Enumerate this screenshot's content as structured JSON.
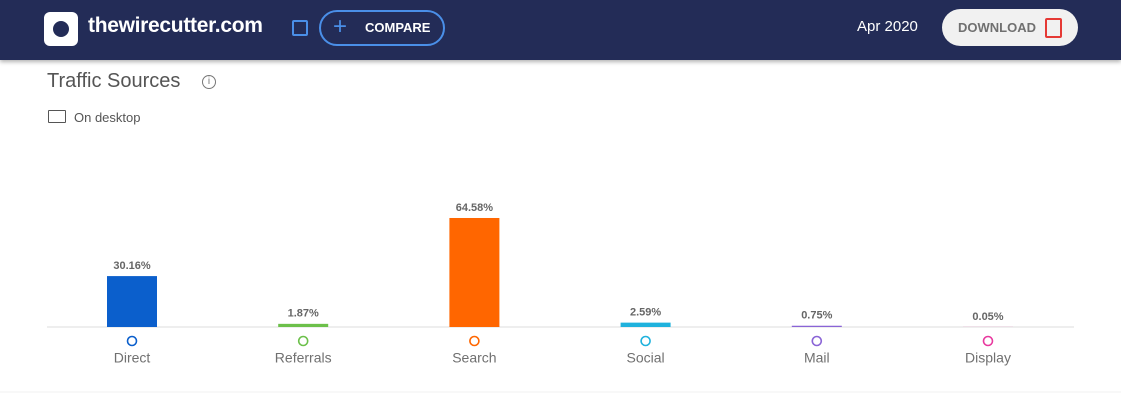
{
  "header": {
    "site": "thewirecutter.com",
    "compare": "COMPARE",
    "date": "Apr 2020",
    "download": "DOWNLOAD"
  },
  "chart_data": {
    "type": "bar",
    "title": "Traffic Sources",
    "subtitle": "On desktop",
    "categories": [
      "Direct",
      "Referrals",
      "Search",
      "Social",
      "Mail",
      "Display"
    ],
    "values": [
      30.16,
      1.87,
      64.58,
      2.59,
      0.75,
      0.05
    ],
    "value_labels": [
      "30.16%",
      "1.87%",
      "64.58%",
      "2.59%",
      "0.75%",
      "0.05%"
    ],
    "colors": [
      "#0b5fcc",
      "#6cc04a",
      "#ff6600",
      "#1fb2dd",
      "#8a64d6",
      "#e8399f"
    ]
  }
}
